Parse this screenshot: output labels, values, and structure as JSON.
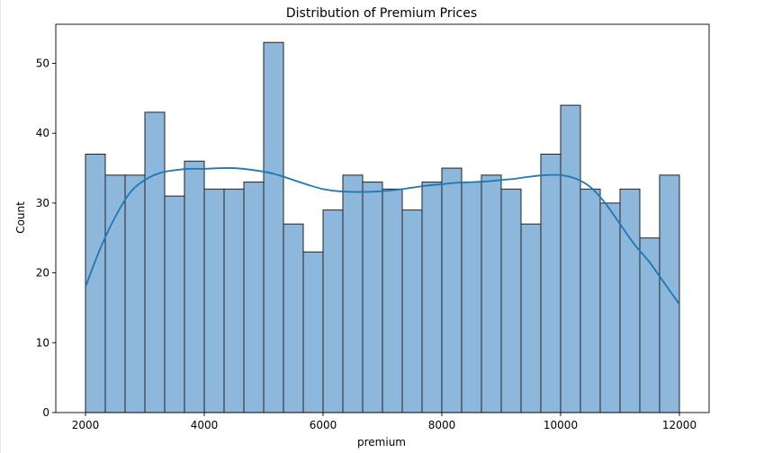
{
  "chart_data": {
    "type": "histogram",
    "title": "Distribution of Premium Prices",
    "xlabel": "premium",
    "ylabel": "Count",
    "xlim": [
      1500,
      12500
    ],
    "ylim": [
      0,
      55.6
    ],
    "bin_start": 2000,
    "bin_end": 12000,
    "bin_count": 30,
    "counts": [
      37,
      34,
      34,
      43,
      31,
      36,
      32,
      32,
      33,
      53,
      27,
      23,
      29,
      34,
      33,
      32,
      29,
      33,
      35,
      33,
      34,
      32,
      27,
      37,
      44,
      32,
      30,
      32,
      25,
      34
    ],
    "xticks": [
      2000,
      4000,
      6000,
      8000,
      10000,
      12000
    ],
    "yticks": [
      0,
      10,
      20,
      30,
      40,
      50
    ],
    "xtick_labels": [
      "2000",
      "4000",
      "6000",
      "8000",
      "10000",
      "12000"
    ],
    "ytick_labels": [
      "0",
      "10",
      "20",
      "30",
      "40",
      "50"
    ],
    "kde": {
      "x": [
        2000,
        2250,
        2500,
        2750,
        3000,
        3250,
        3500,
        3750,
        4000,
        4500,
        5000,
        5250,
        5500,
        5750,
        6000,
        6250,
        6500,
        6750,
        7000,
        7250,
        7500,
        7750,
        8000,
        8250,
        8500,
        8750,
        9000,
        9250,
        9500,
        9750,
        10000,
        10250,
        10500,
        10750,
        11000,
        11250,
        11500,
        11750,
        12000
      ],
      "y": [
        18,
        23.5,
        28,
        31.5,
        33.3,
        34.3,
        34.7,
        34.9,
        34.9,
        35.0,
        34.5,
        34.0,
        33.3,
        32.6,
        32.0,
        31.7,
        31.6,
        31.6,
        31.7,
        31.9,
        32.2,
        32.5,
        32.7,
        32.9,
        33.0,
        33.1,
        33.3,
        33.5,
        33.8,
        34.0,
        34.0,
        33.5,
        32.3,
        30.0,
        27.0,
        24.0,
        21.5,
        18.5,
        15.5
      ]
    },
    "bar_fill": "#8db8dc",
    "bar_edge": "#222222",
    "kde_color": "#1f77b4",
    "grid": false,
    "legend": "none"
  }
}
